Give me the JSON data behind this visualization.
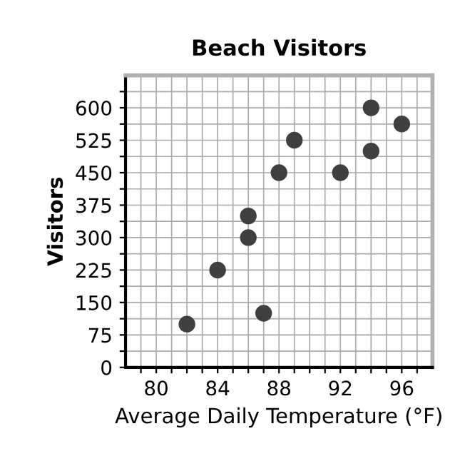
{
  "chart_data": {
    "type": "scatter",
    "title": "Beach Visitors",
    "xlabel": "Average Daily Temperature (°F)",
    "ylabel": "Visitors",
    "x": [
      82,
      84,
      86,
      86,
      87,
      88,
      89,
      92,
      94,
      94,
      96
    ],
    "values": [
      100,
      225,
      300,
      350,
      125,
      450,
      525,
      450,
      600,
      500,
      562.5
    ],
    "color": "#404040",
    "marker": "circle",
    "xlim": [
      78,
      98
    ],
    "ylim": [
      0,
      675
    ],
    "xticks": [
      {
        "value": 79,
        "label": null
      },
      80,
      {
        "value": 81,
        "label": null
      },
      {
        "value": 82,
        "label": null
      },
      {
        "value": 83,
        "label": null
      },
      84,
      {
        "value": 85,
        "label": null
      },
      {
        "value": 86,
        "label": null
      },
      {
        "value": 87,
        "label": null
      },
      88,
      {
        "value": 89,
        "label": null
      },
      {
        "value": 90,
        "label": null
      },
      {
        "value": 91,
        "label": null
      },
      92,
      {
        "value": 93,
        "label": null
      },
      {
        "value": 94,
        "label": null
      },
      {
        "value": 95,
        "label": null
      },
      96,
      {
        "value": 97,
        "label": null
      }
    ],
    "yticks": [
      0,
      {
        "value": 37.5,
        "label": null
      },
      75,
      {
        "value": 112.5,
        "label": null
      },
      150,
      {
        "value": 187.5,
        "label": null
      },
      225,
      {
        "value": 262.5,
        "label": null
      },
      300,
      {
        "value": 337.5,
        "label": null
      },
      375,
      {
        "value": 412.5,
        "label": null
      },
      450,
      {
        "value": 487.5,
        "label": null
      },
      525,
      {
        "value": 562.5,
        "label": null
      },
      600,
      {
        "value": 637.5,
        "label": null
      }
    ],
    "grid": true
  }
}
